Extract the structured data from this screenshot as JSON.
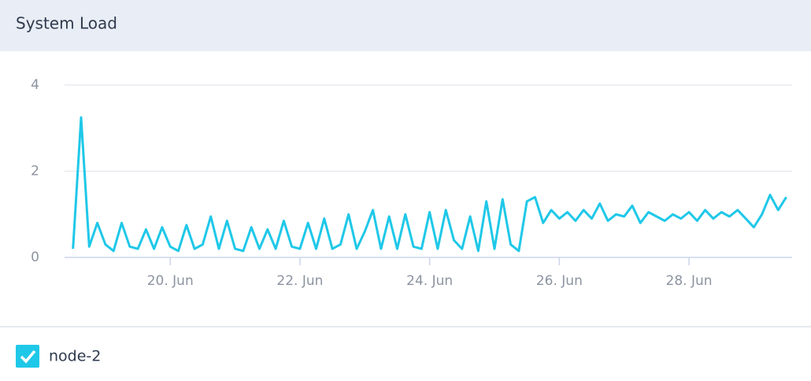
{
  "chart_data": {
    "type": "line",
    "title": "System Load",
    "x": [
      18.5,
      18.625,
      18.75,
      18.875,
      19,
      19.125,
      19.25,
      19.375,
      19.5,
      19.625,
      19.75,
      19.875,
      20,
      20.125,
      20.25,
      20.375,
      20.5,
      20.625,
      20.75,
      20.875,
      21,
      21.125,
      21.25,
      21.375,
      21.5,
      21.625,
      21.75,
      21.875,
      22,
      22.125,
      22.25,
      22.375,
      22.5,
      22.625,
      22.75,
      22.875,
      23,
      23.125,
      23.25,
      23.375,
      23.5,
      23.625,
      23.75,
      23.875,
      24,
      24.125,
      24.25,
      24.375,
      24.5,
      24.625,
      24.75,
      24.875,
      25,
      25.125,
      25.25,
      25.375,
      25.5,
      25.625,
      25.75,
      25.875,
      26,
      26.125,
      26.25,
      26.375,
      26.5,
      26.625,
      26.75,
      26.875,
      27,
      27.125,
      27.25,
      27.375,
      27.5,
      27.625,
      27.75,
      27.875,
      28,
      28.125,
      28.25,
      28.375,
      28.5,
      28.625,
      28.75,
      28.875,
      29,
      29.125,
      29.25,
      29.375,
      29.5
    ],
    "series": [
      {
        "name": "node-2",
        "color": "#1fc8e8",
        "values": [
          0.2,
          3.25,
          0.25,
          0.8,
          0.3,
          0.15,
          0.8,
          0.25,
          0.2,
          0.65,
          0.2,
          0.7,
          0.25,
          0.15,
          0.75,
          0.2,
          0.3,
          0.95,
          0.2,
          0.85,
          0.2,
          0.15,
          0.7,
          0.2,
          0.65,
          0.2,
          0.85,
          0.25,
          0.2,
          0.8,
          0.2,
          0.9,
          0.2,
          0.3,
          1.0,
          0.2,
          0.6,
          1.1,
          0.2,
          0.95,
          0.2,
          1.0,
          0.25,
          0.2,
          1.05,
          0.2,
          1.1,
          0.4,
          0.2,
          0.95,
          0.15,
          1.3,
          0.2,
          1.35,
          0.3,
          0.15,
          1.3,
          1.4,
          0.8,
          1.1,
          0.9,
          1.05,
          0.85,
          1.1,
          0.9,
          1.25,
          0.85,
          1.0,
          0.95,
          1.2,
          0.8,
          1.05,
          0.95,
          0.85,
          1.0,
          0.9,
          1.05,
          0.85,
          1.1,
          0.9,
          1.05,
          0.95,
          1.1,
          0.9,
          0.7,
          1.0,
          1.45,
          1.1,
          1.4
        ]
      }
    ],
    "xlim": [
      18.37,
      29.59
    ],
    "xticks": [
      {
        "value": 20,
        "label": "20. Jun"
      },
      {
        "value": 22,
        "label": "22. Jun"
      },
      {
        "value": 24,
        "label": "24. Jun"
      },
      {
        "value": 26,
        "label": "26. Jun"
      },
      {
        "value": 28,
        "label": "28. Jun"
      }
    ],
    "ylim": [
      0,
      4
    ],
    "yticks": [
      0,
      2,
      4
    ],
    "grid": true
  }
}
